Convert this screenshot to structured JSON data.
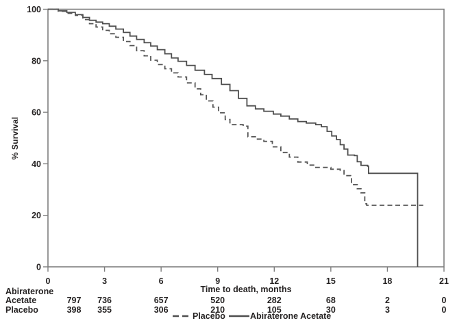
{
  "chart_data": {
    "type": "line",
    "subtype": "kaplan-meier-step",
    "title": "",
    "xlabel": "Time to death, months",
    "ylabel": "% Survival",
    "xlim": [
      0,
      21
    ],
    "ylim": [
      0,
      100
    ],
    "x_ticks": [
      "0",
      "3",
      "6",
      "9",
      "12",
      "15",
      "18",
      "21"
    ],
    "x_tick_values": [
      0,
      3,
      6,
      9,
      12,
      15,
      18,
      21
    ],
    "y_ticks": [
      "0",
      "20",
      "40",
      "60",
      "80",
      "100"
    ],
    "y_tick_values": [
      0,
      20,
      40,
      60,
      80,
      100
    ],
    "grid": false,
    "frame": true,
    "legend_position": "bottom-center",
    "series": [
      {
        "name": "Abiraterone Acetate",
        "style": "solid",
        "color": "#4e4e4e",
        "step": true,
        "points": [
          [
            0,
            100
          ],
          [
            0.55,
            99.4
          ],
          [
            1.0,
            98.8
          ],
          [
            1.45,
            97.9
          ],
          [
            1.85,
            96.8
          ],
          [
            2.2,
            95.7
          ],
          [
            2.55,
            95.0
          ],
          [
            2.9,
            94.4
          ],
          [
            3.25,
            93.4
          ],
          [
            3.6,
            92.3
          ],
          [
            4.0,
            91.0
          ],
          [
            4.35,
            89.6
          ],
          [
            4.7,
            88.3
          ],
          [
            5.1,
            87.0
          ],
          [
            5.45,
            85.7
          ],
          [
            5.8,
            84.3
          ],
          [
            6.2,
            82.7
          ],
          [
            6.55,
            81.1
          ],
          [
            6.9,
            79.8
          ],
          [
            7.35,
            78.2
          ],
          [
            7.8,
            76.3
          ],
          [
            8.3,
            74.7
          ],
          [
            8.7,
            73.1
          ],
          [
            9.2,
            70.8
          ],
          [
            9.65,
            68.4
          ],
          [
            10.1,
            65.4
          ],
          [
            10.55,
            62.5
          ],
          [
            11.0,
            61.3
          ],
          [
            11.45,
            60.4
          ],
          [
            11.95,
            59.3
          ],
          [
            12.35,
            58.5
          ],
          [
            12.8,
            57.4
          ],
          [
            13.25,
            56.4
          ],
          [
            13.7,
            55.8
          ],
          [
            14.2,
            55.2
          ],
          [
            14.5,
            54.4
          ],
          [
            14.8,
            52.6
          ],
          [
            15.05,
            50.8
          ],
          [
            15.3,
            49.4
          ],
          [
            15.5,
            47.4
          ],
          [
            15.7,
            45.7
          ],
          [
            15.9,
            43.4
          ],
          [
            16.25,
            43.2
          ],
          [
            16.4,
            40.8
          ],
          [
            16.6,
            39.4
          ],
          [
            16.95,
            39.1
          ],
          [
            17.0,
            36.3
          ],
          [
            19.6,
            36.3
          ],
          [
            19.6,
            0
          ]
        ]
      },
      {
        "name": "Placebo",
        "style": "dashed",
        "color": "#565656",
        "step": true,
        "points": [
          [
            0,
            100
          ],
          [
            0.55,
            99.2
          ],
          [
            1.0,
            98.4
          ],
          [
            1.45,
            97.6
          ],
          [
            1.85,
            96.0
          ],
          [
            2.2,
            94.4
          ],
          [
            2.55,
            93.1
          ],
          [
            2.9,
            91.8
          ],
          [
            3.25,
            90.5
          ],
          [
            3.6,
            89.1
          ],
          [
            4.0,
            87.5
          ],
          [
            4.35,
            85.9
          ],
          [
            4.7,
            83.9
          ],
          [
            5.1,
            81.9
          ],
          [
            5.45,
            80.2
          ],
          [
            5.8,
            78.5
          ],
          [
            6.2,
            76.9
          ],
          [
            6.55,
            75.3
          ],
          [
            6.9,
            73.7
          ],
          [
            7.35,
            71.4
          ],
          [
            7.8,
            69.1
          ],
          [
            8.1,
            66.8
          ],
          [
            8.4,
            64.4
          ],
          [
            8.75,
            62.0
          ],
          [
            9.05,
            59.8
          ],
          [
            9.4,
            57.2
          ],
          [
            9.65,
            55.2
          ],
          [
            10.35,
            54.6
          ],
          [
            10.6,
            50.5
          ],
          [
            11.0,
            49.6
          ],
          [
            11.45,
            48.7
          ],
          [
            11.9,
            46.6
          ],
          [
            12.35,
            44.4
          ],
          [
            12.8,
            42.6
          ],
          [
            13.25,
            40.7
          ],
          [
            13.75,
            39.5
          ],
          [
            14.2,
            38.6
          ],
          [
            15.0,
            37.9
          ],
          [
            15.5,
            37.4
          ],
          [
            15.7,
            35.4
          ],
          [
            16.05,
            34.6
          ],
          [
            16.1,
            31.9
          ],
          [
            16.4,
            30.3
          ],
          [
            16.6,
            28.7
          ],
          [
            16.8,
            24.5
          ],
          [
            16.9,
            23.9
          ],
          [
            19.9,
            23.9
          ]
        ]
      }
    ],
    "risk_table": {
      "rows": [
        {
          "label_lines": [
            "Abiraterone",
            "Acetate"
          ],
          "values": [
            "797",
            "736",
            "657",
            "520",
            "282",
            "68",
            "2",
            "0"
          ]
        },
        {
          "label_lines": [
            "Placebo"
          ],
          "values": [
            "398",
            "355",
            "306",
            "210",
            "105",
            "30",
            "3",
            "0"
          ]
        }
      ]
    },
    "legend": [
      {
        "label": "Placebo",
        "style": "dashed"
      },
      {
        "label": "Abiraterone Acetate",
        "style": "solid"
      }
    ]
  },
  "colors": {
    "axis": "#7e7e7e",
    "text": "#262323",
    "solid_curve": "#4e4e4e",
    "dashed_curve": "#565656"
  }
}
